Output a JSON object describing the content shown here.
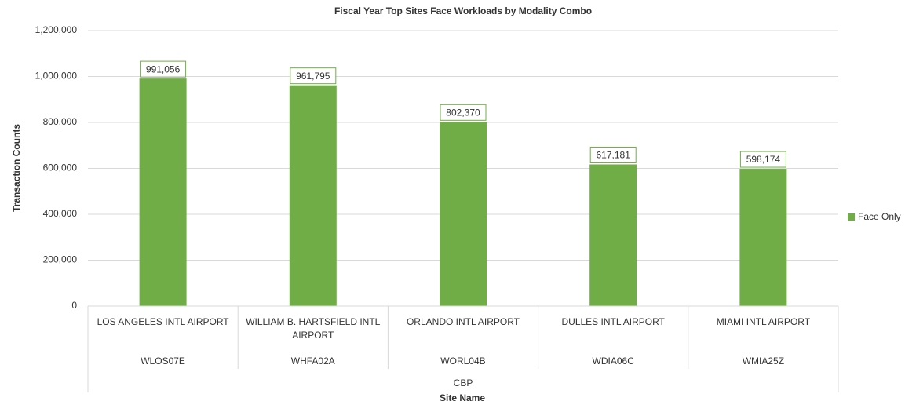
{
  "chart_data": {
    "type": "bar",
    "title": "Fiscal Year Top Sites Face Workloads by Modality Combo",
    "y_label": "Transaction Counts",
    "x_label": "Site Name",
    "categories": [
      "LOS ANGELES INTL AIRPORT",
      "WILLIAM B. HARTSFIELD INTL AIRPORT",
      "ORLANDO INTL AIRPORT",
      "DULLES INTL AIRPORT",
      "MIAMI INTL AIRPORT"
    ],
    "subcategories": [
      "WLOS07E",
      "WHFA02A",
      "WORL04B",
      "WDIA06C",
      "WMIA25Z"
    ],
    "group": "CBP",
    "series": [
      {
        "name": "Face Only",
        "color": "#70ad47",
        "values": [
          991056,
          961795,
          802370,
          617181,
          598174
        ],
        "value_labels": [
          "991,056",
          "961,795",
          "802,370",
          "617,181",
          "598,174"
        ]
      }
    ],
    "ylim": [
      0,
      1200000
    ],
    "yticks": [
      0,
      {
        "value": 200000,
        "label": "200,000"
      },
      {
        "value": 400000,
        "label": "400,000"
      },
      {
        "value": 600000,
        "label": "600,000"
      },
      {
        "value": 800000,
        "label": "800,000"
      },
      {
        "value": 1000000,
        "label": "1,000,000"
      },
      {
        "value": 1200000,
        "label": "1,200,000"
      }
    ],
    "grid": true,
    "legend": "right"
  }
}
